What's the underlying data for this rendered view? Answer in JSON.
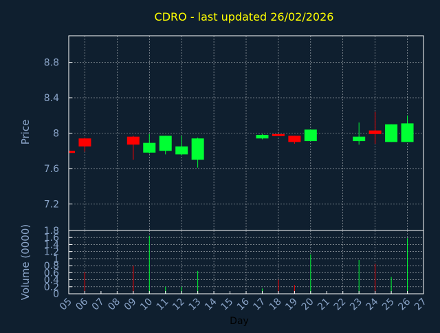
{
  "title": "CDRO - last updated 26/02/2026",
  "colors": {
    "background": "#0f1f2f",
    "title": "#ffff00",
    "axis_text": "#8aa4c8",
    "frame": "#ffffff",
    "grid": "#ffffff",
    "up": "#00ff33",
    "down": "#ff0000"
  },
  "chart_data": [
    {
      "type": "candlestick",
      "title": "CDRO - last updated 26/02/2026",
      "ylabel": "Price",
      "xlabel": "",
      "xlim": [
        5,
        27
      ],
      "ylim": [
        6.9,
        9.1
      ],
      "yticks": [
        7.2,
        7.6,
        8,
        8.4,
        8.8
      ],
      "ytick_labels": [
        "7.2",
        "7.6",
        "8",
        "8.4",
        "8.8"
      ],
      "grid": true,
      "candles": [
        {
          "day": 5,
          "open": 7.8,
          "close": 7.78,
          "high": 7.8,
          "low": 7.78
        },
        {
          "day": 6,
          "open": 7.94,
          "close": 7.85,
          "high": 7.95,
          "low": 7.79
        },
        {
          "day": 9,
          "open": 7.96,
          "close": 7.87,
          "high": 7.97,
          "low": 7.7
        },
        {
          "day": 10,
          "open": 7.78,
          "close": 7.89,
          "high": 7.99,
          "low": 7.77
        },
        {
          "day": 11,
          "open": 7.8,
          "close": 7.97,
          "high": 7.97,
          "low": 7.76
        },
        {
          "day": 12,
          "open": 7.76,
          "close": 7.85,
          "high": 7.97,
          "low": 7.75
        },
        {
          "day": 13,
          "open": 7.7,
          "close": 7.94,
          "high": 7.95,
          "low": 7.61
        },
        {
          "day": 17,
          "open": 7.94,
          "close": 7.98,
          "high": 7.99,
          "low": 7.93
        },
        {
          "day": 18,
          "open": 7.99,
          "close": 7.98,
          "high": 7.99,
          "low": 7.98
        },
        {
          "day": 19,
          "open": 7.97,
          "close": 7.9,
          "high": 7.97,
          "low": 7.88
        },
        {
          "day": 20,
          "open": 7.91,
          "close": 8.04,
          "high": 8.04,
          "low": 7.91
        },
        {
          "day": 23,
          "open": 7.91,
          "close": 7.96,
          "high": 8.12,
          "low": 7.87
        },
        {
          "day": 24,
          "open": 8.03,
          "close": 7.99,
          "high": 8.24,
          "low": 7.88
        },
        {
          "day": 25,
          "open": 7.9,
          "close": 8.1,
          "high": 8.1,
          "low": 7.9
        },
        {
          "day": 26,
          "open": 7.9,
          "close": 8.11,
          "high": 8.2,
          "low": 7.9
        }
      ]
    },
    {
      "type": "bar",
      "ylabel": "Volume (0000)",
      "xlabel": "Day",
      "xlim": [
        5,
        27
      ],
      "ylim": [
        0,
        1.8
      ],
      "yticks": [
        0,
        0.2,
        0.4,
        0.6,
        0.8,
        1,
        1.2,
        1.4,
        1.6,
        1.8
      ],
      "ytick_labels": [
        "0",
        "0.2",
        "0.4",
        "0.6",
        "0.8",
        "1",
        "1.2",
        "1.4",
        "1.6",
        "1.8"
      ],
      "xtick_values": [
        5,
        6,
        7,
        8,
        9,
        10,
        11,
        12,
        13,
        14,
        15,
        16,
        17,
        18,
        19,
        20,
        21,
        22,
        23,
        24,
        25,
        26,
        27
      ],
      "xtick_labels": [
        "05",
        "06",
        "07",
        "08",
        "09",
        "10",
        "11",
        "12",
        "13",
        "14",
        "15",
        "16",
        "17",
        "18",
        "19",
        "20",
        "21",
        "22",
        "23",
        "24",
        "25",
        "26",
        "27"
      ],
      "grid": true,
      "volumes": [
        {
          "day": 6,
          "value": 0.62,
          "direction": "down"
        },
        {
          "day": 9,
          "value": 0.8,
          "direction": "down"
        },
        {
          "day": 10,
          "value": 1.65,
          "direction": "up"
        },
        {
          "day": 11,
          "value": 0.2,
          "direction": "up"
        },
        {
          "day": 12,
          "value": 0.2,
          "direction": "up"
        },
        {
          "day": 13,
          "value": 0.65,
          "direction": "up"
        },
        {
          "day": 17,
          "value": 0.15,
          "direction": "up"
        },
        {
          "day": 18,
          "value": 0.4,
          "direction": "down"
        },
        {
          "day": 19,
          "value": 0.25,
          "direction": "down"
        },
        {
          "day": 20,
          "value": 1.12,
          "direction": "up"
        },
        {
          "day": 23,
          "value": 0.96,
          "direction": "up"
        },
        {
          "day": 24,
          "value": 0.85,
          "direction": "down"
        },
        {
          "day": 25,
          "value": 0.48,
          "direction": "up"
        },
        {
          "day": 26,
          "value": 1.58,
          "direction": "up"
        }
      ]
    }
  ]
}
